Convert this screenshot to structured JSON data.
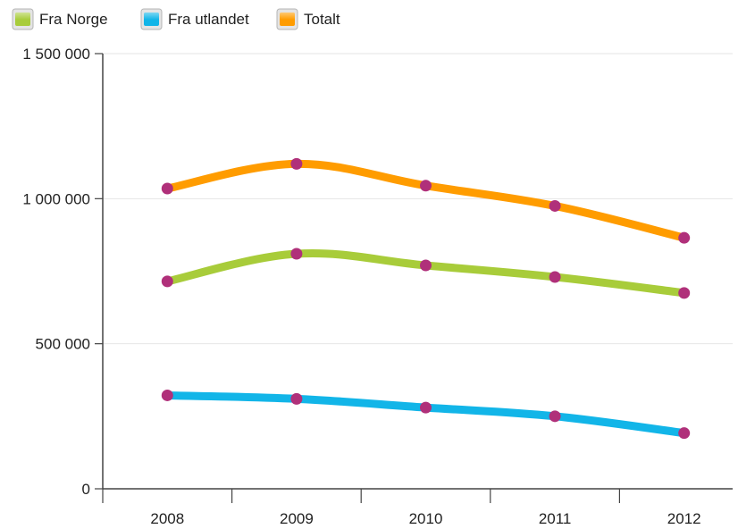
{
  "chart_data": {
    "type": "line",
    "title": "",
    "xlabel": "",
    "ylabel": "",
    "categories": [
      "2008",
      "2009",
      "2010",
      "2011",
      "2012"
    ],
    "ylim": [
      0,
      1500000
    ],
    "yticks": [
      0,
      500000,
      1000000,
      1500000
    ],
    "ytick_labels": [
      "0",
      "500 000",
      "1 000 000",
      "1 500 000"
    ],
    "grid": true,
    "legend_position": "top-left",
    "marker_color": "#b0307a",
    "series": [
      {
        "name": "Fra Norge",
        "color": "#a8cc3a",
        "values": [
          715000,
          810000,
          770000,
          730000,
          675000
        ]
      },
      {
        "name": "Fra utlandet",
        "color": "#12b5e8",
        "values": [
          322000,
          310000,
          280000,
          250000,
          192000
        ]
      },
      {
        "name": "Totalt",
        "color": "#ff9c00",
        "values": [
          1035000,
          1120000,
          1045000,
          975000,
          865000
        ]
      }
    ]
  }
}
